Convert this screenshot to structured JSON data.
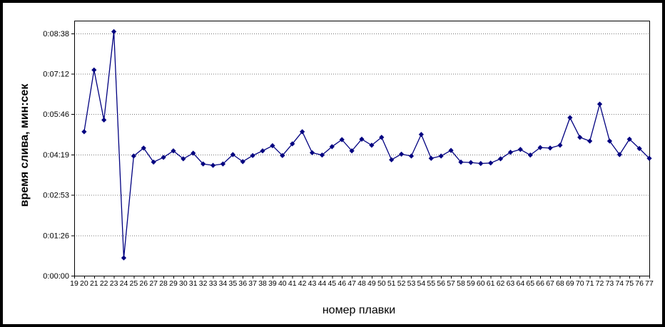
{
  "chart_data": {
    "type": "line",
    "title": "",
    "xlabel": "номер плавки",
    "ylabel": "время слива, мин:сек",
    "legend": "none",
    "grid": "horizontal-dotted",
    "marker": "diamond",
    "line_color": "#000080",
    "value_format": "h:mm:ss",
    "ylim_seconds": [
      0,
      546
    ],
    "y_ticks": [
      "0:00:00",
      "0:01:26",
      "0:02:53",
      "0:04:19",
      "0:05:46",
      "0:07:12",
      "0:08:38"
    ],
    "x": [
      19,
      20,
      21,
      22,
      23,
      24,
      25,
      26,
      27,
      28,
      29,
      30,
      31,
      32,
      33,
      34,
      35,
      36,
      37,
      38,
      39,
      40,
      41,
      42,
      43,
      44,
      45,
      46,
      47,
      48,
      49,
      50,
      51,
      52,
      53,
      54,
      55,
      56,
      57,
      58,
      59,
      60,
      61,
      62,
      63,
      64,
      65,
      66,
      67,
      68,
      69,
      70,
      71,
      72,
      73,
      74,
      75,
      76,
      77
    ],
    "values": [
      null,
      "0:05:08",
      "0:07:20",
      "0:05:33",
      "0:08:42",
      "0:00:38",
      "0:04:16",
      "0:04:33",
      "0:04:03",
      "0:04:13",
      "0:04:27",
      "0:04:10",
      "0:04:22",
      "0:03:59",
      "0:03:56",
      "0:03:59",
      "0:04:19",
      "0:04:04",
      "0:04:17",
      "0:04:27",
      "0:04:38",
      "0:04:17",
      "0:04:42",
      "0:05:08",
      "0:04:23",
      "0:04:18",
      "0:04:36",
      "0:04:51",
      "0:04:27",
      "0:04:52",
      "0:04:39",
      "0:04:56",
      "0:04:08",
      "0:04:20",
      "0:04:16",
      "0:05:02",
      "0:04:11",
      "0:04:16",
      "0:04:28",
      "0:04:03",
      "0:04:02",
      "0:04:00",
      "0:04:01",
      "0:04:10",
      "0:04:24",
      "0:04:30",
      "0:04:18",
      "0:04:34",
      "0:04:33",
      "0:04:39",
      "0:05:38",
      "0:04:56",
      "0:04:48",
      "0:06:07",
      "0:04:48",
      "0:04:19",
      "0:04:52",
      "0:04:32",
      "0:04:11"
    ]
  }
}
